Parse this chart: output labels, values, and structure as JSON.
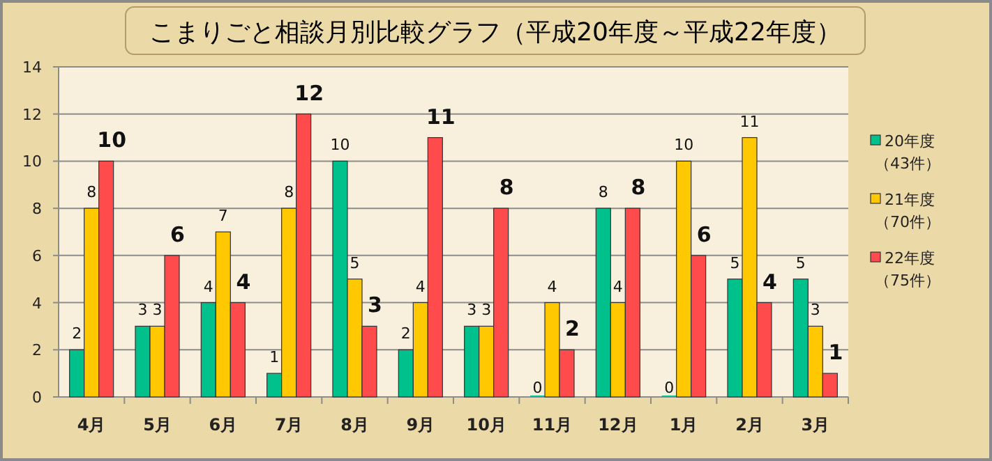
{
  "chart_data": {
    "type": "bar",
    "title": "こまりごと相談月別比較グラフ（平成20年度～平成22年度）",
    "categories": [
      "4月",
      "5月",
      "6月",
      "7月",
      "8月",
      "9月",
      "10月",
      "11月",
      "12月",
      "1月",
      "2月",
      "3月"
    ],
    "series": [
      {
        "name": "20年度（43件）",
        "color": "#00c08b",
        "values": [
          2,
          3,
          4,
          1,
          10,
          2,
          3,
          0,
          8,
          0,
          5,
          5
        ]
      },
      {
        "name": "21年度（70件）",
        "color": "#ffc800",
        "values": [
          8,
          3,
          7,
          8,
          5,
          4,
          3,
          4,
          4,
          10,
          11,
          3
        ]
      },
      {
        "name": "22年度（75件）",
        "color": "#ff4b4b",
        "values": [
          10,
          6,
          4,
          12,
          3,
          11,
          8,
          2,
          8,
          6,
          4,
          1
        ]
      }
    ],
    "ylim": [
      0,
      14
    ],
    "yticks": [
      0,
      2,
      4,
      6,
      8,
      10,
      12,
      14
    ],
    "grid": "y",
    "legend": "right",
    "data_labels": true
  }
}
